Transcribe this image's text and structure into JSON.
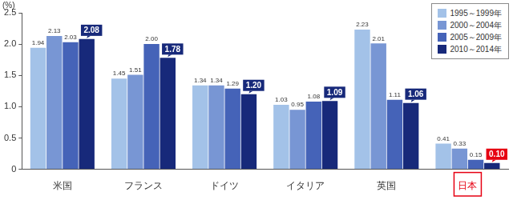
{
  "chart_data": {
    "type": "bar",
    "ylabel": "(%)",
    "categories": [
      "米国",
      "フランス",
      "ドイツ",
      "イタリア",
      "英国",
      "日本"
    ],
    "series": [
      {
        "name": "1995～1999年",
        "color": "#a3c2e8",
        "values": [
          1.94,
          1.45,
          1.34,
          1.03,
          2.23,
          0.41
        ],
        "value_labels": [
          "1.94",
          "1.45",
          "1.34",
          "1.03",
          "2.23",
          "0.41"
        ]
      },
      {
        "name": "2000～2004年",
        "color": "#7896d4",
        "values": [
          2.13,
          1.51,
          1.34,
          0.95,
          2.01,
          0.33
        ],
        "value_labels": [
          "2.13",
          "1.51",
          "1.34",
          "0.95",
          "2.01",
          "0.33"
        ]
      },
      {
        "name": "2005～2009年",
        "color": "#4563b8",
        "values": [
          2.03,
          2.0,
          1.29,
          1.08,
          1.11,
          0.15
        ],
        "value_labels": [
          "2.03",
          "2.00",
          "1.29",
          "1.08",
          "1.11",
          "0.15"
        ]
      },
      {
        "name": "2010～2014年",
        "color": "#17297a",
        "values": [
          2.08,
          1.78,
          1.2,
          1.09,
          1.06,
          0.1
        ],
        "value_labels": [
          "2.08",
          "1.78",
          "1.20",
          "1.09",
          "1.06",
          "0.10"
        ]
      }
    ],
    "ylim": [
      0,
      2.5
    ],
    "yticks": [
      0,
      0.5,
      {
        "value": 1,
        "label": "1.0"
      },
      1.5,
      {
        "value": 2,
        "label": "2.0"
      },
      2.5
    ],
    "grid": false,
    "legend": "upper right",
    "data_labels": true
  }
}
